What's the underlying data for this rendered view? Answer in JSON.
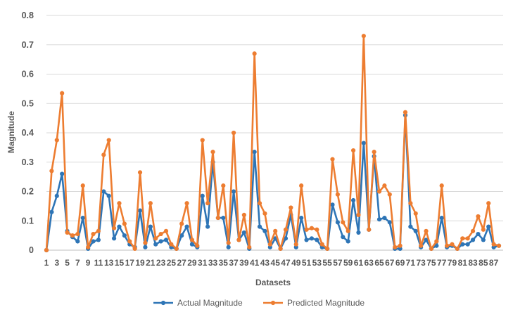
{
  "chart_data": {
    "type": "line",
    "title": "",
    "xlabel": "Datasets",
    "ylabel": "Magnitude",
    "ylim": [
      0,
      0.8
    ],
    "yticks": [
      0,
      0.1,
      0.2,
      0.3,
      0.4,
      0.5,
      0.6,
      0.7,
      0.8
    ],
    "grid": "horizontal",
    "legend_position": "bottom",
    "x": [
      1,
      2,
      3,
      4,
      5,
      6,
      7,
      8,
      9,
      10,
      11,
      12,
      13,
      14,
      15,
      16,
      17,
      18,
      19,
      20,
      21,
      22,
      23,
      24,
      25,
      26,
      27,
      28,
      29,
      30,
      31,
      32,
      33,
      34,
      35,
      36,
      37,
      38,
      39,
      40,
      41,
      42,
      43,
      44,
      45,
      46,
      47,
      48,
      49,
      50,
      51,
      52,
      53,
      54,
      55,
      56,
      57,
      58,
      59,
      60,
      61,
      62,
      63,
      64,
      65,
      66,
      67,
      68,
      69,
      70,
      71,
      72,
      73,
      74,
      75,
      76,
      77,
      78,
      79,
      80,
      81,
      82,
      83,
      84,
      85,
      86,
      87,
      88
    ],
    "xtick_labels": [
      "1",
      "3",
      "5",
      "7",
      "9",
      "11",
      "13",
      "15",
      "17",
      "19",
      "21",
      "23",
      "25",
      "27",
      "29",
      "31",
      "33",
      "35",
      "37",
      "39",
      "41",
      "43",
      "45",
      "47",
      "49",
      "51",
      "53",
      "55",
      "57",
      "59",
      "61",
      "63",
      "65",
      "67",
      "69",
      "71",
      "73",
      "75",
      "77",
      "79",
      "81",
      "83",
      "85",
      "87"
    ],
    "series": [
      {
        "name": "Actual Magnitude",
        "color": "#2e75b6",
        "values": [
          0,
          0.13,
          0.185,
          0.26,
          0.065,
          0.045,
          0.03,
          0.11,
          0.005,
          0.03,
          0.035,
          0.2,
          0.185,
          0.04,
          0.08,
          0.05,
          0.02,
          0.01,
          0.135,
          0.01,
          0.08,
          0.02,
          0.03,
          0.035,
          0.01,
          0.005,
          0.05,
          0.08,
          0.02,
          0.01,
          0.185,
          0.08,
          0.3,
          0.11,
          0.11,
          0.01,
          0.2,
          0.035,
          0.06,
          0.005,
          0.335,
          0.08,
          0.065,
          0.01,
          0.04,
          0.005,
          0.04,
          0.12,
          0.01,
          0.11,
          0.035,
          0.04,
          0.035,
          0.01,
          0.005,
          0.155,
          0.095,
          0.045,
          0.03,
          0.17,
          0.06,
          0.365,
          0.07,
          0.32,
          0.105,
          0.11,
          0.095,
          0.005,
          0.005,
          0.46,
          0.08,
          0.065,
          0.01,
          0.035,
          0.005,
          0.015,
          0.11,
          0.01,
          0.015,
          0.005,
          0.02,
          0.02,
          0.035,
          0.055,
          0.035,
          0.08,
          0.01,
          0.015
        ]
      },
      {
        "name": "Predicted Magnitude",
        "color": "#ed7d31",
        "values": [
          0,
          0.27,
          0.375,
          0.535,
          0.06,
          0.05,
          0.055,
          0.22,
          0.01,
          0.055,
          0.065,
          0.325,
          0.375,
          0.075,
          0.16,
          0.09,
          0.03,
          0.005,
          0.265,
          0.025,
          0.16,
          0.04,
          0.055,
          0.065,
          0.02,
          0.005,
          0.09,
          0.16,
          0.035,
          0.015,
          0.375,
          0.16,
          0.335,
          0.11,
          0.22,
          0.025,
          0.4,
          0.035,
          0.12,
          0.01,
          0.67,
          0.16,
          0.125,
          0.02,
          0.065,
          0.005,
          0.07,
          0.145,
          0.02,
          0.22,
          0.07,
          0.075,
          0.07,
          0.02,
          0.005,
          0.31,
          0.19,
          0.095,
          0.065,
          0.34,
          0.12,
          0.73,
          0.07,
          0.335,
          0.2,
          0.22,
          0.19,
          0.01,
          0.015,
          0.47,
          0.16,
          0.125,
          0.015,
          0.065,
          0.005,
          0.03,
          0.22,
          0.015,
          0.02,
          0.005,
          0.04,
          0.04,
          0.065,
          0.115,
          0.07,
          0.16,
          0.02,
          0.015
        ]
      }
    ]
  }
}
